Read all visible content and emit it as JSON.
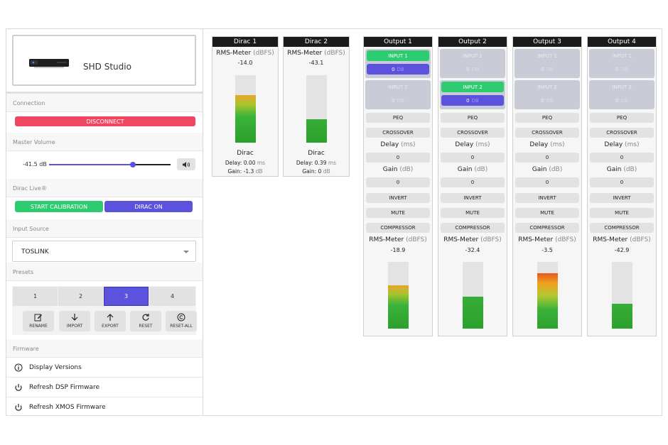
{
  "device": {
    "name": "SHD Studio"
  },
  "connection": {
    "section_label": "Connection",
    "disconnect_label": "DISCONNECT"
  },
  "master_volume": {
    "section_label": "Master Volume",
    "value_label": "-41.5 dB",
    "level": 0.69
  },
  "dirac_live": {
    "section_label": "Dirac Live®",
    "start_calibration_label": "START CALIBRATION",
    "dirac_on_label": "DIRAC ON"
  },
  "input_source": {
    "section_label": "Input Source",
    "selected": "TOSLINK"
  },
  "presets": {
    "section_label": "Presets",
    "items": [
      "1",
      "2",
      "3",
      "4"
    ],
    "selected_index": 2,
    "actions": [
      "RENAME",
      "IMPORT",
      "EXPORT",
      "RESET",
      "RESET-ALL"
    ]
  },
  "firmware": {
    "section_label": "Firmware",
    "items": [
      "Display Versions",
      "Refresh DSP Firmware",
      "Refresh XMOS Firmware"
    ]
  },
  "meter_title": "RMS-Meter",
  "meter_unit": "(dBFS)",
  "dirac_channels": [
    {
      "title": "Dirac 1",
      "rms": "-14.0",
      "level": 0.71,
      "name": "Dirac",
      "delay_label": "Delay:",
      "delay": "0.00",
      "delay_unit": "ms",
      "gain_label": "Gain:",
      "gain": "-1.3",
      "gain_unit": "dB"
    },
    {
      "title": "Dirac 2",
      "rms": "-43.1",
      "level": 0.35,
      "name": "Dirac",
      "delay_label": "Delay:",
      "delay": "0.39",
      "delay_unit": "ms",
      "gain_label": "Gain:",
      "gain": "0",
      "gain_unit": "dB"
    }
  ],
  "output_channels": [
    {
      "title": "Output 1",
      "rms": "-18.9",
      "level": 0.65,
      "peak": false,
      "routes": [
        {
          "input": "INPUT 1",
          "gain": "0",
          "unit": "DB",
          "active": true
        },
        {
          "input": "INPUT 2",
          "gain": "0",
          "unit": "DB",
          "active": false
        }
      ],
      "peq": "PEQ",
      "crossover": "CROSSOVER",
      "delay_label": "Delay",
      "delay_unit": "(ms)",
      "delay": "0",
      "gain_label": "Gain",
      "gain_unit": "(dB)",
      "gain": "0",
      "invert": "INVERT",
      "mute": "MUTE",
      "compressor": "COMPRESSOR"
    },
    {
      "title": "Output 2",
      "rms": "-32.4",
      "level": 0.48,
      "peak": false,
      "routes": [
        {
          "input": "INPUT 1",
          "gain": "0",
          "unit": "DB",
          "active": false
        },
        {
          "input": "INPUT 2",
          "gain": "0",
          "unit": "DB",
          "active": true
        }
      ],
      "peq": "PEQ",
      "crossover": "CROSSOVER",
      "delay_label": "Delay",
      "delay_unit": "(ms)",
      "delay": "0",
      "gain_label": "Gain",
      "gain_unit": "(dB)",
      "gain": "0",
      "invert": "INVERT",
      "mute": "MUTE",
      "compressor": "COMPRESSOR"
    },
    {
      "title": "Output 3",
      "rms": "-3.5",
      "level": 0.83,
      "peak": true,
      "routes": [
        {
          "input": "INPUT 1",
          "gain": "0",
          "unit": "DB",
          "active": false
        },
        {
          "input": "INPUT 2",
          "gain": "0",
          "unit": "DB",
          "active": false
        }
      ],
      "peq": "PEQ",
      "crossover": "CROSSOVER",
      "delay_label": "Delay",
      "delay_unit": "(ms)",
      "delay": "0",
      "gain_label": "Gain",
      "gain_unit": "(dB)",
      "gain": "0",
      "invert": "INVERT",
      "mute": "MUTE",
      "compressor": "COMPRESSOR"
    },
    {
      "title": "Output 4",
      "rms": "-42.9",
      "level": 0.37,
      "peak": false,
      "routes": [
        {
          "input": "INPUT 1",
          "gain": "0",
          "unit": "DB",
          "active": false
        },
        {
          "input": "INPUT 2",
          "gain": "0",
          "unit": "DB",
          "active": false
        }
      ],
      "peq": "PEQ",
      "crossover": "CROSSOVER",
      "delay_label": "Delay",
      "delay_unit": "(ms)",
      "delay": "0",
      "gain_label": "Gain",
      "gain_unit": "(dB)",
      "gain": "0",
      "invert": "INVERT",
      "mute": "MUTE",
      "compressor": "COMPRESSOR"
    }
  ],
  "colors": {
    "accent": "#5b52dd",
    "success": "#2ecc71",
    "danger": "#f0465f",
    "header": "#1b1b1b"
  }
}
